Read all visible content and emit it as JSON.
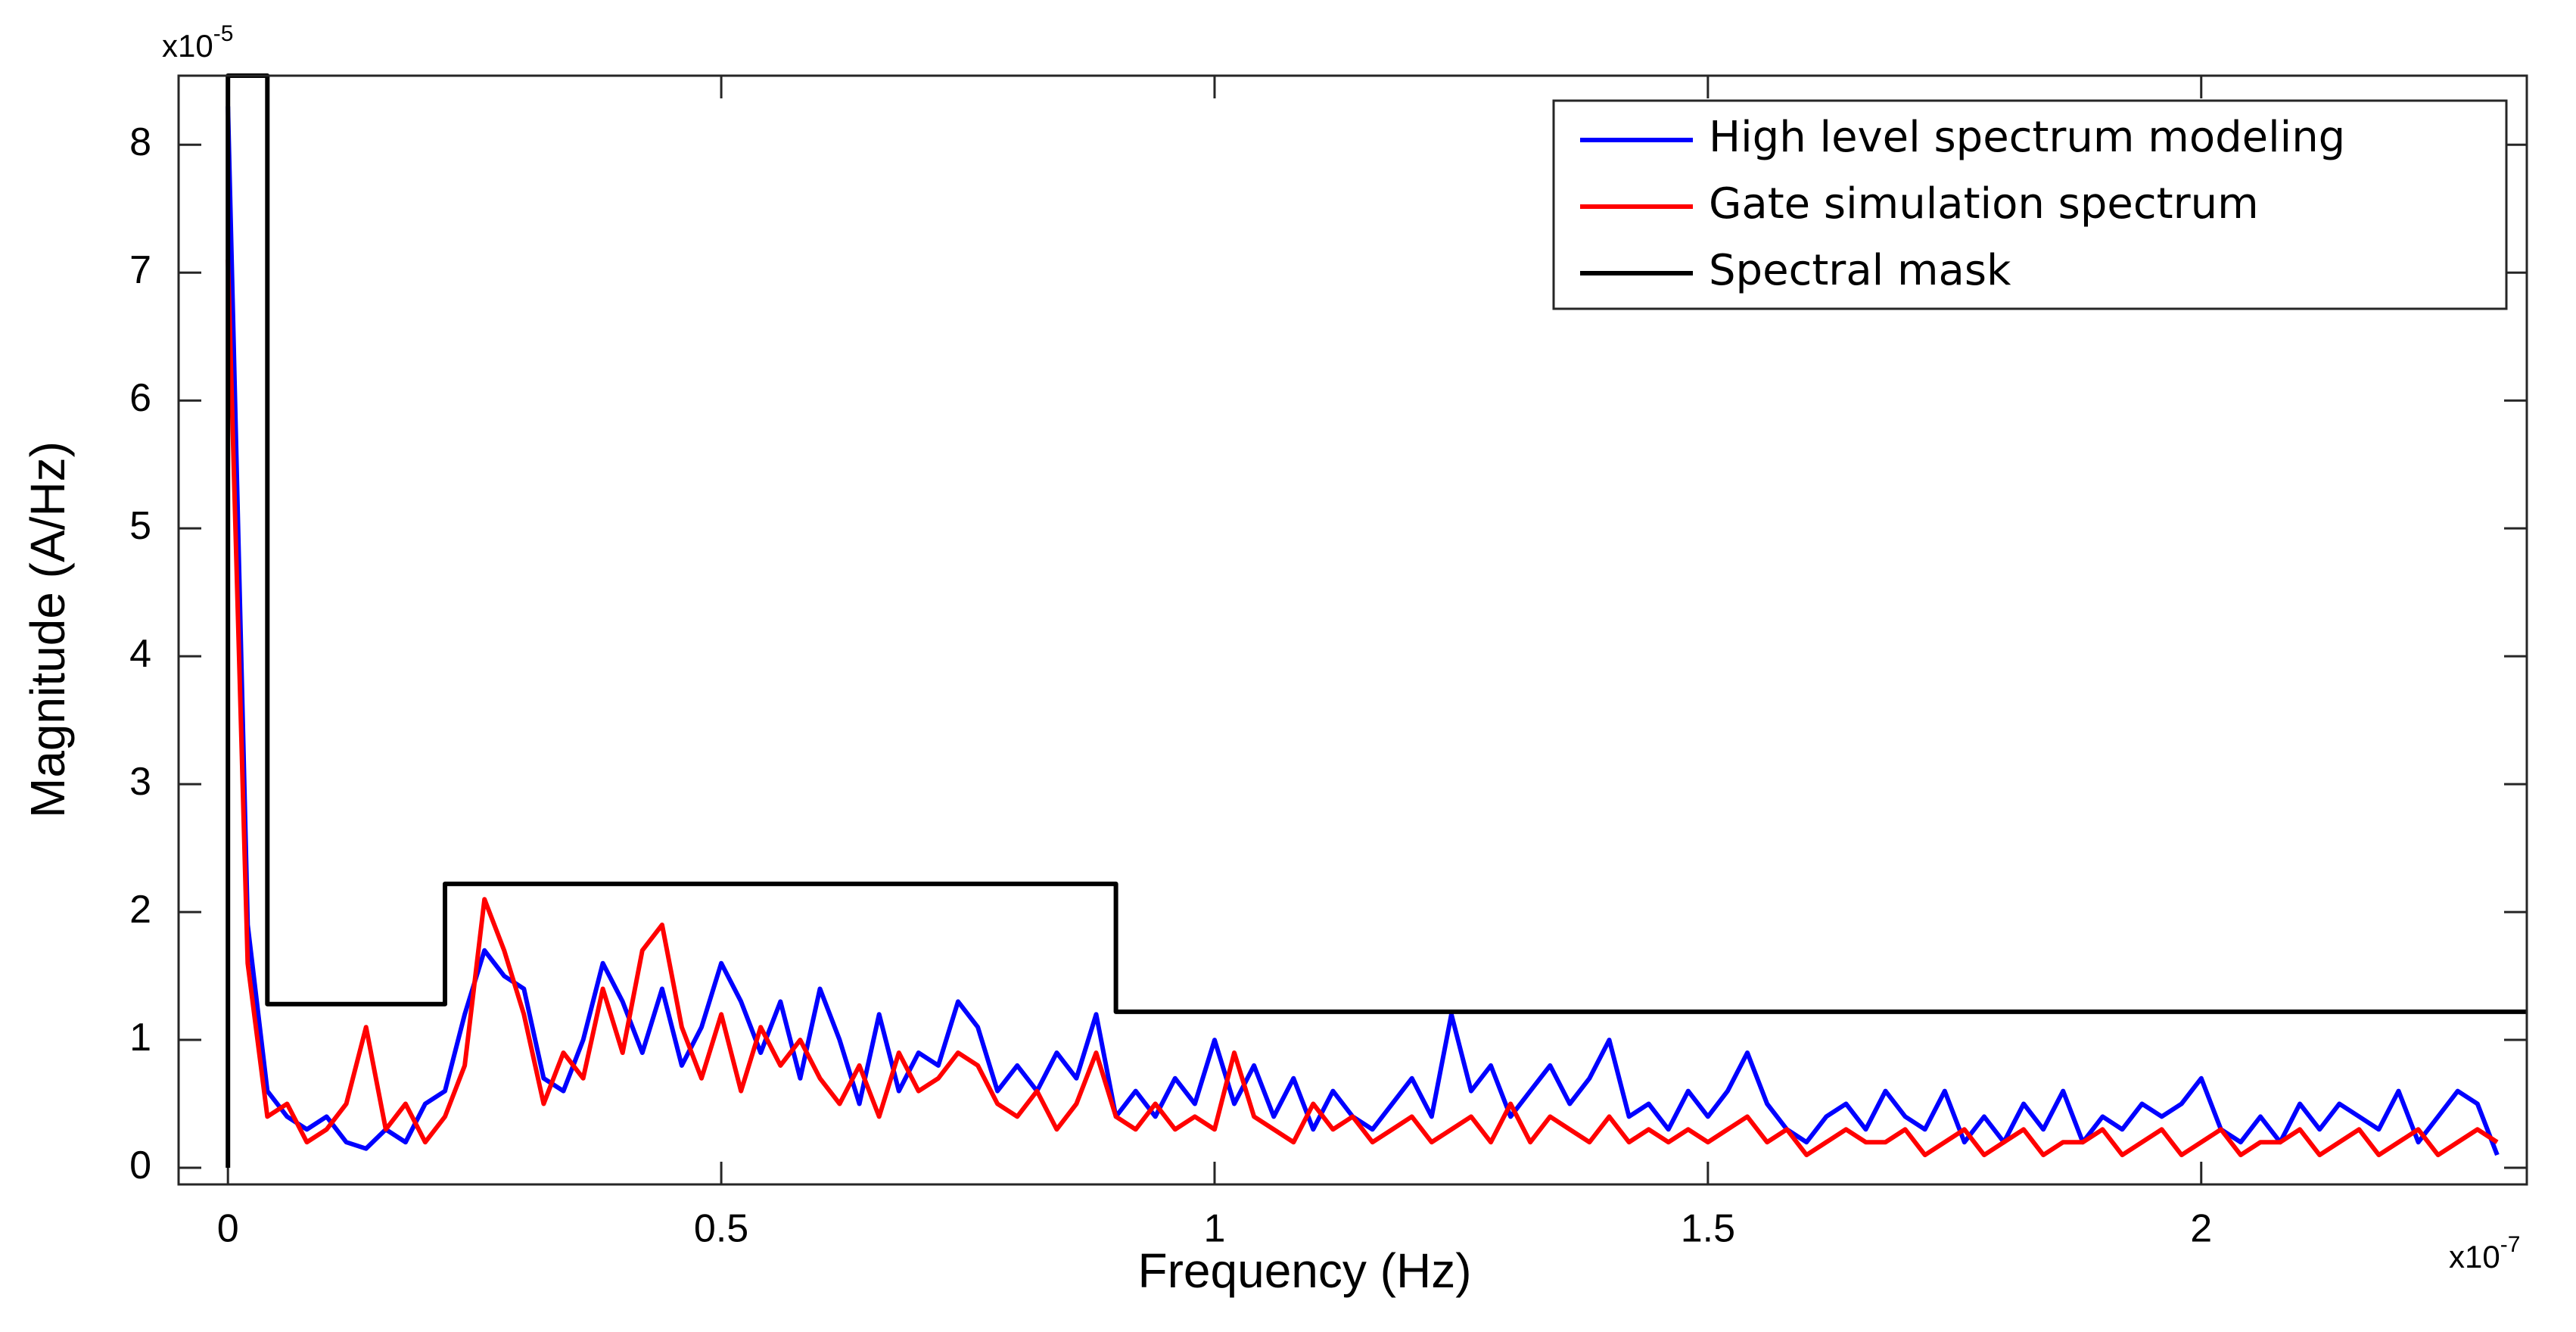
{
  "chart_data": {
    "type": "line",
    "xlabel": "Frequency (Hz)",
    "ylabel": "Magnitude (A/Hz)",
    "x_multiplier": {
      "base": "x10",
      "exponent": "-7"
    },
    "y_multiplier": {
      "base": "x10",
      "exponent": "-5"
    },
    "xlim": [
      -0.05,
      2.33
    ],
    "ylim": [
      -0.13,
      8.54
    ],
    "xticks": [
      0,
      0.5,
      1,
      1.5,
      2
    ],
    "yticks": [
      0,
      1,
      2,
      3,
      4,
      5,
      6,
      7,
      8
    ],
    "legend": "upper right",
    "x": [
      0,
      0.02,
      0.04,
      0.06,
      0.08,
      0.1,
      0.12,
      0.14,
      0.16,
      0.18,
      0.2,
      0.22,
      0.24,
      0.26,
      0.28,
      0.3,
      0.32,
      0.34,
      0.36,
      0.38,
      0.4,
      0.42,
      0.44,
      0.46,
      0.48,
      0.5,
      0.52,
      0.54,
      0.56,
      0.58,
      0.6,
      0.62,
      0.64,
      0.66,
      0.68,
      0.7,
      0.72,
      0.74,
      0.76,
      0.78,
      0.8,
      0.82,
      0.84,
      0.86,
      0.88,
      0.9,
      0.92,
      0.94,
      0.96,
      0.98,
      1,
      1.02,
      1.04,
      1.06,
      1.08,
      1.1,
      1.12,
      1.14,
      1.16,
      1.18,
      1.2,
      1.22,
      1.24,
      1.26,
      1.28,
      1.3,
      1.32,
      1.34,
      1.36,
      1.38,
      1.4,
      1.42,
      1.44,
      1.46,
      1.48,
      1.5,
      1.52,
      1.54,
      1.56,
      1.58,
      1.6,
      1.62,
      1.64,
      1.66,
      1.68,
      1.7,
      1.72,
      1.74,
      1.76,
      1.78,
      1.8,
      1.82,
      1.84,
      1.86,
      1.88,
      1.9,
      1.92,
      1.94,
      1.96,
      1.98,
      2,
      2.02,
      2.04,
      2.06,
      2.08,
      2.1,
      2.12,
      2.14,
      2.16,
      2.18,
      2.2,
      2.22,
      2.24,
      2.26,
      2.28,
      2.3
    ],
    "series": [
      {
        "name": "High level spectrum modeling",
        "color": "#0000ff",
        "values": [
          8.3,
          1.9,
          0.6,
          0.4,
          0.3,
          0.4,
          0.2,
          0.15,
          0.3,
          0.2,
          0.5,
          0.6,
          1.2,
          1.7,
          1.5,
          1.4,
          0.7,
          0.6,
          1.0,
          1.6,
          1.3,
          0.9,
          1.4,
          0.8,
          1.1,
          1.6,
          1.3,
          0.9,
          1.3,
          0.7,
          1.4,
          1.0,
          0.5,
          1.2,
          0.6,
          0.9,
          0.8,
          1.3,
          1.1,
          0.6,
          0.8,
          0.6,
          0.9,
          0.7,
          1.2,
          0.4,
          0.6,
          0.4,
          0.7,
          0.5,
          1.0,
          0.5,
          0.8,
          0.4,
          0.7,
          0.3,
          0.6,
          0.4,
          0.3,
          0.5,
          0.7,
          0.4,
          1.2,
          0.6,
          0.8,
          0.4,
          0.6,
          0.8,
          0.5,
          0.7,
          1.0,
          0.4,
          0.5,
          0.3,
          0.6,
          0.4,
          0.6,
          0.9,
          0.5,
          0.3,
          0.2,
          0.4,
          0.5,
          0.3,
          0.6,
          0.4,
          0.3,
          0.6,
          0.2,
          0.4,
          0.2,
          0.5,
          0.3,
          0.6,
          0.2,
          0.4,
          0.3,
          0.5,
          0.4,
          0.5,
          0.7,
          0.3,
          0.2,
          0.4,
          0.2,
          0.5,
          0.3,
          0.5,
          0.4,
          0.3,
          0.6,
          0.2,
          0.4,
          0.6,
          0.5,
          0.1
        ]
      },
      {
        "name": "Gate simulation spectrum",
        "color": "#ff0000",
        "values": [
          7.1,
          1.6,
          0.4,
          0.5,
          0.2,
          0.3,
          0.5,
          1.1,
          0.3,
          0.5,
          0.2,
          0.4,
          0.8,
          2.1,
          1.7,
          1.2,
          0.5,
          0.9,
          0.7,
          1.4,
          0.9,
          1.7,
          1.9,
          1.1,
          0.7,
          1.2,
          0.6,
          1.1,
          0.8,
          1.0,
          0.7,
          0.5,
          0.8,
          0.4,
          0.9,
          0.6,
          0.7,
          0.9,
          0.8,
          0.5,
          0.4,
          0.6,
          0.3,
          0.5,
          0.9,
          0.4,
          0.3,
          0.5,
          0.3,
          0.4,
          0.3,
          0.9,
          0.4,
          0.3,
          0.2,
          0.5,
          0.3,
          0.4,
          0.2,
          0.3,
          0.4,
          0.2,
          0.3,
          0.4,
          0.2,
          0.5,
          0.2,
          0.4,
          0.3,
          0.2,
          0.4,
          0.2,
          0.3,
          0.2,
          0.3,
          0.2,
          0.3,
          0.4,
          0.2,
          0.3,
          0.1,
          0.2,
          0.3,
          0.2,
          0.2,
          0.3,
          0.1,
          0.2,
          0.3,
          0.1,
          0.2,
          0.3,
          0.1,
          0.2,
          0.2,
          0.3,
          0.1,
          0.2,
          0.3,
          0.1,
          0.2,
          0.3,
          0.1,
          0.2,
          0.2,
          0.3,
          0.1,
          0.2,
          0.3,
          0.1,
          0.2,
          0.3,
          0.1,
          0.2,
          0.3,
          0.2
        ]
      },
      {
        "name": "Spectral mask",
        "color": "#000000",
        "x": [
          0,
          0,
          0.04,
          0.04,
          0.22,
          0.22,
          0.9,
          0.9,
          2.33
        ],
        "values": [
          0,
          8.54,
          8.54,
          1.28,
          1.28,
          2.22,
          2.22,
          1.22,
          1.22
        ]
      }
    ]
  }
}
